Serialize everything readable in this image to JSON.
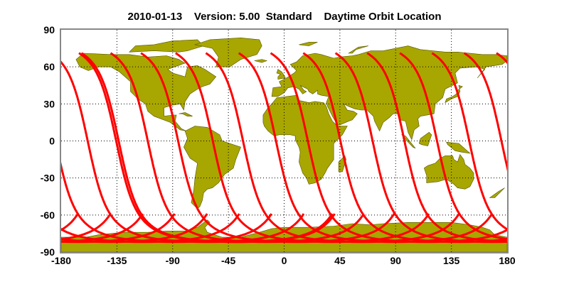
{
  "title": "2010-01-13    Version: 5.00  Standard    Daytime Orbit Location",
  "chart_data": {
    "type": "map",
    "title": "2010-01-13    Version: 5.00  Standard    Daytime Orbit Location",
    "xlim": [
      -180,
      180
    ],
    "ylim": [
      -90,
      90
    ],
    "x_ticks": [
      "-180",
      "-135",
      "-90",
      "-45",
      "0",
      "45",
      "90",
      "135",
      "180"
    ],
    "y_ticks": [
      "90",
      "60",
      "30",
      "0",
      "-30",
      "-60",
      "-90"
    ],
    "grid": true,
    "colors": {
      "land": "#a8a600",
      "orbit": "#ff0000",
      "coast": "#555500"
    },
    "orbit_track_north_end_longitudes": [
      -167,
      -141.5,
      -117,
      -89,
      -64.6,
      -38,
      -12.3,
      14,
      40,
      65.7,
      92,
      118,
      144,
      170,
      195
    ],
    "orbit_north_end_latitude": 72,
    "orbit_south_turn_latitude": -82
  }
}
